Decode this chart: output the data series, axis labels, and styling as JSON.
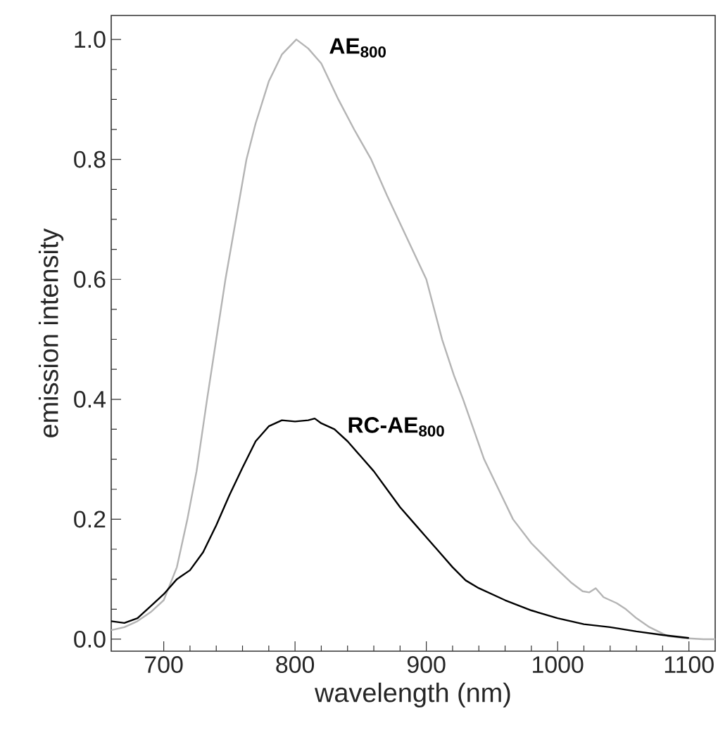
{
  "chart_data": {
    "type": "line",
    "xlabel": "wavelength (nm)",
    "ylabel": "emission intensity",
    "xlim": [
      660,
      1120
    ],
    "ylim": [
      -0.02,
      1.04
    ],
    "xticks": [
      700,
      800,
      900,
      1000,
      1100
    ],
    "yticks": [
      {
        "value": 0,
        "label": "0.0"
      },
      {
        "value": 0.2,
        "label": "0.2"
      },
      {
        "value": 0.4,
        "label": "0.4"
      },
      {
        "value": 0.6,
        "label": "0.6"
      },
      {
        "value": 0.8,
        "label": "0.8"
      },
      {
        "value": 1,
        "label": "1.0"
      }
    ],
    "grid": false,
    "legend": false,
    "marker": "none",
    "line_style": "solid",
    "series": [
      {
        "name": "AE$_{800}$",
        "color": "#b4b4b4",
        "x": [
          660,
          670,
          680,
          690,
          700,
          710,
          718,
          725,
          733,
          740,
          747,
          755,
          763,
          770,
          780,
          790,
          801,
          810,
          820,
          833,
          845,
          858,
          870,
          885,
          900,
          912,
          921,
          928,
          944,
          955,
          966,
          980,
          998,
          1010,
          1019,
          1024,
          1029,
          1035,
          1045,
          1052,
          1060,
          1070,
          1084,
          1095,
          1111,
          1120
        ],
        "values": [
          0.015,
          0.02,
          0.03,
          0.045,
          0.065,
          0.12,
          0.2,
          0.28,
          0.4,
          0.5,
          0.6,
          0.7,
          0.8,
          0.86,
          0.93,
          0.975,
          1.0,
          0.985,
          0.96,
          0.9,
          0.85,
          0.8,
          0.74,
          0.67,
          0.6,
          0.5,
          0.44,
          0.4,
          0.3,
          0.25,
          0.2,
          0.16,
          0.12,
          0.095,
          0.08,
          0.078,
          0.085,
          0.07,
          0.06,
          0.05,
          0.035,
          0.02,
          0.005,
          0.002,
          0.0,
          0.0
        ]
      },
      {
        "name": "RC-AE$_{800}$",
        "color": "#000000",
        "x": [
          660,
          670,
          680,
          690,
          700,
          710,
          720,
          730,
          740,
          750,
          760,
          770,
          780,
          790,
          800,
          810,
          815,
          820,
          830,
          840,
          850,
          860,
          870,
          880,
          890,
          900,
          910,
          920,
          930,
          940,
          960,
          980,
          1000,
          1020,
          1040,
          1060,
          1080,
          1100
        ],
        "values": [
          0.03,
          0.027,
          0.035,
          0.055,
          0.075,
          0.1,
          0.115,
          0.145,
          0.19,
          0.24,
          0.286,
          0.33,
          0.355,
          0.365,
          0.363,
          0.365,
          0.368,
          0.36,
          0.35,
          0.33,
          0.305,
          0.28,
          0.25,
          0.22,
          0.195,
          0.17,
          0.145,
          0.12,
          0.098,
          0.085,
          0.065,
          0.048,
          0.035,
          0.025,
          0.02,
          0.013,
          0.007,
          0.002
        ]
      }
    ]
  }
}
